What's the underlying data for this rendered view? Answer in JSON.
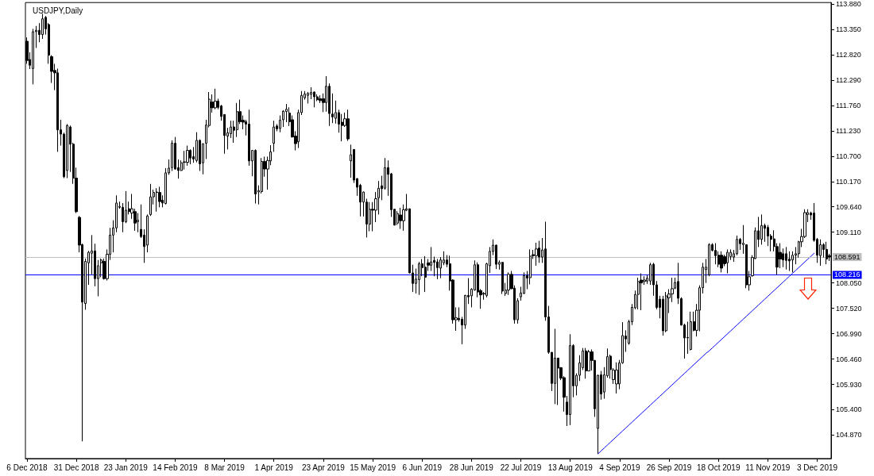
{
  "chart_data": {
    "type": "candlestick",
    "title": "USDJPY,Daily",
    "color": "#000000",
    "marker": "none",
    "categories": [
      "6 Dec 2018",
      null,
      null,
      null,
      null,
      null,
      null,
      null,
      null,
      null,
      null,
      null,
      null,
      null,
      null,
      null,
      "31 Dec 2018",
      null,
      null,
      null,
      null,
      null,
      null,
      null,
      null,
      null,
      null,
      null,
      null,
      null,
      null,
      null,
      "23 Jan 2019",
      null,
      null,
      null,
      null,
      null,
      null,
      null,
      null,
      null,
      null,
      null,
      null,
      null,
      null,
      null,
      "14 Feb 2019",
      null,
      null,
      null,
      null,
      null,
      null,
      null,
      null,
      null,
      null,
      null,
      null,
      null,
      null,
      null,
      "8 Mar 2019",
      null,
      null,
      null,
      null,
      null,
      null,
      null,
      null,
      null,
      null,
      null,
      null,
      null,
      null,
      null,
      "1 Apr 2019",
      null,
      null,
      null,
      null,
      null,
      null,
      null,
      null,
      null,
      null,
      null,
      null,
      null,
      null,
      null,
      "23 Apr 2019",
      null,
      null,
      null,
      null,
      null,
      null,
      null,
      null,
      null,
      null,
      null,
      null,
      null,
      null,
      null,
      "15 May 2019",
      null,
      null,
      null,
      null,
      null,
      null,
      null,
      null,
      null,
      null,
      null,
      null,
      null,
      null,
      null,
      "6 Jun 2019",
      null,
      null,
      null,
      null,
      null,
      null,
      null,
      null,
      null,
      null,
      null,
      null,
      null,
      null,
      null,
      "28 Jun 2019",
      null,
      null,
      null,
      null,
      null,
      null,
      null,
      null,
      null,
      null,
      null,
      null,
      null,
      null,
      null,
      "22 Jul 2019",
      null,
      null,
      null,
      null,
      null,
      null,
      null,
      null,
      null,
      null,
      null,
      null,
      null,
      null,
      null,
      "13 Aug 2019",
      null,
      null,
      null,
      null,
      null,
      null,
      null,
      null,
      null,
      null,
      null,
      null,
      null,
      null,
      null,
      "4 Sep 2019",
      null,
      null,
      null,
      null,
      null,
      null,
      null,
      null,
      null,
      null,
      null,
      null,
      null,
      null,
      null,
      "26 Sep 2019",
      null,
      null,
      null,
      null,
      null,
      null,
      null,
      null,
      null,
      null,
      null,
      null,
      null,
      null,
      null,
      "18 Oct 2019",
      null,
      null,
      null,
      null,
      null,
      null,
      null,
      null,
      null,
      null,
      null,
      null,
      null,
      null,
      null,
      "11 Nov 2019",
      null,
      null,
      null,
      null,
      null,
      null,
      null,
      null,
      null,
      null,
      null,
      null,
      null,
      null,
      null,
      "3 Dec 2019",
      null,
      null,
      null,
      null
    ],
    "ohlc": [
      [
        113.1,
        113.18,
        112.63,
        112.7
      ],
      [
        112.72,
        112.87,
        112.52,
        112.6
      ],
      [
        112.53,
        113.36,
        112.2,
        113.3
      ],
      [
        113.3,
        113.42,
        112.96,
        113.33
      ],
      [
        113.33,
        113.48,
        113.08,
        113.24
      ],
      [
        113.24,
        113.67,
        113.15,
        113.57
      ],
      [
        113.6,
        113.63,
        113.24,
        113.36
      ],
      [
        113.45,
        113.48,
        112.63,
        112.81
      ],
      [
        112.78,
        112.81,
        112.23,
        112.47
      ],
      [
        112.49,
        112.63,
        112.08,
        112.44
      ],
      [
        112.44,
        112.53,
        110.79,
        111.25
      ],
      [
        111.25,
        111.46,
        110.92,
        111.16
      ],
      [
        111.16,
        111.19,
        110.24,
        110.27
      ],
      [
        110.4,
        111.37,
        110.24,
        111.34
      ],
      [
        111.31,
        111.34,
        110.37,
        110.95
      ],
      [
        110.95,
        110.98,
        110.12,
        110.24
      ],
      [
        110.24,
        110.46,
        109.51,
        109.54
      ],
      [
        109.42,
        109.45,
        108.69,
        108.84
      ],
      [
        108.85,
        108.87,
        104.74,
        107.65
      ],
      [
        107.62,
        108.56,
        107.49,
        108.5
      ],
      [
        108.47,
        108.72,
        108.01,
        108.69
      ],
      [
        108.67,
        109.05,
        108.23,
        108.72
      ],
      [
        108.72,
        108.87,
        107.98,
        108.14
      ],
      [
        108.14,
        108.53,
        107.77,
        108.41
      ],
      [
        108.47,
        108.56,
        108.17,
        108.53
      ],
      [
        108.5,
        108.56,
        108.12,
        108.14
      ],
      [
        108.14,
        108.75,
        108.1,
        108.65
      ],
      [
        108.65,
        109.2,
        108.53,
        109.05
      ],
      [
        109.05,
        109.36,
        108.69,
        109.2
      ],
      [
        109.2,
        109.88,
        109.11,
        109.72
      ],
      [
        109.63,
        109.75,
        109.6,
        109.65
      ],
      [
        109.63,
        109.72,
        109.11,
        109.33
      ],
      [
        109.33,
        109.97,
        109.3,
        109.57
      ],
      [
        109.6,
        109.75,
        109.48,
        109.54
      ],
      [
        109.51,
        109.91,
        109.39,
        109.6
      ],
      [
        109.54,
        109.6,
        109.14,
        109.3
      ],
      [
        109.33,
        109.51,
        109.11,
        109.36
      ],
      [
        109.17,
        109.69,
        108.99,
        109.02
      ],
      [
        109.05,
        109.17,
        108.47,
        108.81
      ],
      [
        108.84,
        109.48,
        108.69,
        109.45
      ],
      [
        109.48,
        110.12,
        109.45,
        109.85
      ],
      [
        109.85,
        110.0,
        109.69,
        109.94
      ],
      [
        109.94,
        110.03,
        109.54,
        109.95
      ],
      [
        109.94,
        110.06,
        109.63,
        109.75
      ],
      [
        109.78,
        109.88,
        109.63,
        109.72
      ],
      [
        109.71,
        110.45,
        109.69,
        110.35
      ],
      [
        110.35,
        110.63,
        110.31,
        110.45
      ],
      [
        110.46,
        111.03,
        110.39,
        110.97
      ],
      [
        110.97,
        111.1,
        110.42,
        110.43
      ],
      [
        110.46,
        110.63,
        110.23,
        110.4
      ],
      [
        110.4,
        110.61,
        110.39,
        110.56
      ],
      [
        110.57,
        110.81,
        110.42,
        110.58
      ],
      [
        110.57,
        110.92,
        110.5,
        110.82
      ],
      [
        110.82,
        110.84,
        110.53,
        110.66
      ],
      [
        110.69,
        110.89,
        110.56,
        110.64
      ],
      [
        110.61,
        111.2,
        110.57,
        111.03
      ],
      [
        111.03,
        111.05,
        110.39,
        110.54
      ],
      [
        110.56,
        110.96,
        110.32,
        110.96
      ],
      [
        110.97,
        111.46,
        110.64,
        111.35
      ],
      [
        111.34,
        112.04,
        111.3,
        111.89
      ],
      [
        111.83,
        111.99,
        111.61,
        111.71
      ],
      [
        111.71,
        112.11,
        111.68,
        111.85
      ],
      [
        111.85,
        111.9,
        111.68,
        111.72
      ],
      [
        111.75,
        111.77,
        111.44,
        111.53
      ],
      [
        111.57,
        111.57,
        110.75,
        111.13
      ],
      [
        111.12,
        111.29,
        110.84,
        111.19
      ],
      [
        111.17,
        111.44,
        111.08,
        111.31
      ],
      [
        111.31,
        111.44,
        110.98,
        111.24
      ],
      [
        111.25,
        111.81,
        111.1,
        111.63
      ],
      [
        111.63,
        111.88,
        111.37,
        111.42
      ],
      [
        111.45,
        111.55,
        111.26,
        111.41
      ],
      [
        111.42,
        111.46,
        111.13,
        111.37
      ],
      [
        111.37,
        111.67,
        110.5,
        110.6
      ],
      [
        110.6,
        110.82,
        110.28,
        110.82
      ],
      [
        110.82,
        110.84,
        109.71,
        109.91
      ],
      [
        109.95,
        110.09,
        109.69,
        109.98
      ],
      [
        109.96,
        110.66,
        109.92,
        110.59
      ],
      [
        110.59,
        110.69,
        110.27,
        110.43
      ],
      [
        110.43,
        110.69,
        110.0,
        110.61
      ],
      [
        110.6,
        110.93,
        110.51,
        110.79
      ],
      [
        110.97,
        111.44,
        110.79,
        111.31
      ],
      [
        111.33,
        111.37,
        111.22,
        111.27
      ],
      [
        111.28,
        111.55,
        111.2,
        111.45
      ],
      [
        111.46,
        111.66,
        111.31,
        111.64
      ],
      [
        111.63,
        111.79,
        111.41,
        111.68
      ],
      [
        111.6,
        111.72,
        111.33,
        111.42
      ],
      [
        111.46,
        111.55,
        111.09,
        111.1
      ],
      [
        111.12,
        111.22,
        110.82,
        110.96
      ],
      [
        111.0,
        111.67,
        110.87,
        111.61
      ],
      [
        111.61,
        112.06,
        111.56,
        111.97
      ],
      [
        111.92,
        112.06,
        111.88,
        112.0
      ],
      [
        111.97,
        112.04,
        111.8,
        112.01
      ],
      [
        111.99,
        112.14,
        111.89,
        112.03
      ],
      [
        112.04,
        112.05,
        111.72,
        111.94
      ],
      [
        111.94,
        111.99,
        111.85,
        111.88
      ],
      [
        111.9,
        111.97,
        111.81,
        111.86
      ],
      [
        111.9,
        112.01,
        111.62,
        111.82
      ],
      [
        111.82,
        112.37,
        111.63,
        112.16
      ],
      [
        112.16,
        112.22,
        111.33,
        111.59
      ],
      [
        111.58,
        112.01,
        111.39,
        111.52
      ],
      [
        111.49,
        111.86,
        111.38,
        111.61
      ],
      [
        111.61,
        111.67,
        111.19,
        111.37
      ],
      [
        111.41,
        111.58,
        111.01,
        111.34
      ],
      [
        111.34,
        111.61,
        111.31,
        111.48
      ],
      [
        111.48,
        111.67,
        111.02,
        111.06
      ],
      [
        110.6,
        110.94,
        110.25,
        110.73
      ],
      [
        110.84,
        110.84,
        110.14,
        110.2
      ],
      [
        110.23,
        110.24,
        109.87,
        110.05
      ],
      [
        110.09,
        110.12,
        109.44,
        109.74
      ],
      [
        109.74,
        109.96,
        109.44,
        109.95
      ],
      [
        109.74,
        109.81,
        109.0,
        109.28
      ],
      [
        109.28,
        109.74,
        109.13,
        109.59
      ],
      [
        109.59,
        109.74,
        109.13,
        109.57
      ],
      [
        109.57,
        109.95,
        109.32,
        109.81
      ],
      [
        109.83,
        110.18,
        109.48,
        110.03
      ],
      [
        110.08,
        110.29,
        109.78,
        110.02
      ],
      [
        110.03,
        110.66,
        110.0,
        110.46
      ],
      [
        110.46,
        110.61,
        109.87,
        110.32
      ],
      [
        110.33,
        110.35,
        109.43,
        109.58
      ],
      [
        109.59,
        109.59,
        109.25,
        109.26
      ],
      [
        109.3,
        109.55,
        109.26,
        109.5
      ],
      [
        109.47,
        109.62,
        109.18,
        109.35
      ],
      [
        109.35,
        109.69,
        109.14,
        109.58
      ],
      [
        109.57,
        109.91,
        109.55,
        109.6
      ],
      [
        109.6,
        109.6,
        108.25,
        108.26
      ],
      [
        108.26,
        108.43,
        107.86,
        108.04
      ],
      [
        108.04,
        108.35,
        107.83,
        108.13
      ],
      [
        108.12,
        108.49,
        107.8,
        108.45
      ],
      [
        108.45,
        108.55,
        108.19,
        108.37
      ],
      [
        108.38,
        108.61,
        107.86,
        108.17
      ],
      [
        108.47,
        108.55,
        108.3,
        108.42
      ],
      [
        108.42,
        108.8,
        108.3,
        108.49
      ],
      [
        108.52,
        108.6,
        108.19,
        108.48
      ],
      [
        108.49,
        108.55,
        108.13,
        108.37
      ],
      [
        108.36,
        108.59,
        108.15,
        108.53
      ],
      [
        108.47,
        108.71,
        108.42,
        108.53
      ],
      [
        108.53,
        108.63,
        108.38,
        108.44
      ],
      [
        108.45,
        108.62,
        107.89,
        108.09
      ],
      [
        108.11,
        108.13,
        107.2,
        107.28
      ],
      [
        107.28,
        107.54,
        107.05,
        107.32
      ],
      [
        107.31,
        107.54,
        107.24,
        107.28
      ],
      [
        107.29,
        107.34,
        106.77,
        107.17
      ],
      [
        107.17,
        107.8,
        107.09,
        107.79
      ],
      [
        107.79,
        108.15,
        107.61,
        107.76
      ],
      [
        107.78,
        107.94,
        107.54,
        107.92
      ],
      [
        107.9,
        108.52,
        107.89,
        108.43
      ],
      [
        108.43,
        108.48,
        107.75,
        107.86
      ],
      [
        107.89,
        107.92,
        107.51,
        107.8
      ],
      [
        107.82,
        107.86,
        107.7,
        107.83
      ],
      [
        107.79,
        108.47,
        107.75,
        108.45
      ],
      [
        108.41,
        108.8,
        108.26,
        108.71
      ],
      [
        108.71,
        108.96,
        108.63,
        108.84
      ],
      [
        108.84,
        108.85,
        108.34,
        108.44
      ],
      [
        108.44,
        108.52,
        108.33,
        108.48
      ],
      [
        108.48,
        108.49,
        107.82,
        107.88
      ],
      [
        107.83,
        108.05,
        107.78,
        107.9
      ],
      [
        107.9,
        108.27,
        107.8,
        108.23
      ],
      [
        108.23,
        108.3,
        107.92,
        107.93
      ],
      [
        107.94,
        108.0,
        107.2,
        107.28
      ],
      [
        107.28,
        107.73,
        107.2,
        107.68
      ],
      [
        107.76,
        107.97,
        107.68,
        107.84
      ],
      [
        107.83,
        108.27,
        107.82,
        108.2
      ],
      [
        108.2,
        108.3,
        107.92,
        108.15
      ],
      [
        108.16,
        108.75,
        108.02,
        108.61
      ],
      [
        108.64,
        108.74,
        108.55,
        108.62
      ],
      [
        108.62,
        108.89,
        108.41,
        108.76
      ],
      [
        108.78,
        108.93,
        108.47,
        108.59
      ],
      [
        108.59,
        108.99,
        108.47,
        108.74
      ],
      [
        108.76,
        109.33,
        107.26,
        107.34
      ],
      [
        107.34,
        107.57,
        106.57,
        106.6
      ],
      [
        106.6,
        106.6,
        105.79,
        105.95
      ],
      [
        105.95,
        107.09,
        105.52,
        106.48
      ],
      [
        106.48,
        106.48,
        105.5,
        106.27
      ],
      [
        106.28,
        106.29,
        106.02,
        106.06
      ],
      [
        106.07,
        106.1,
        105.36,
        105.66
      ],
      [
        105.56,
        105.69,
        105.06,
        105.3
      ],
      [
        105.3,
        106.98,
        105.08,
        106.74
      ],
      [
        106.74,
        106.77,
        105.66,
        105.9
      ],
      [
        105.9,
        106.16,
        105.7,
        106.12
      ],
      [
        106.12,
        106.54,
        106.0,
        106.38
      ],
      [
        106.28,
        106.69,
        106.23,
        106.63
      ],
      [
        106.63,
        106.69,
        106.05,
        106.21
      ],
      [
        106.21,
        106.65,
        106.21,
        106.61
      ],
      [
        106.61,
        106.66,
        106.22,
        106.43
      ],
      [
        106.43,
        106.44,
        105.25,
        105.42
      ],
      [
        105.01,
        106.13,
        104.48,
        106.12
      ],
      [
        106.13,
        106.21,
        105.61,
        105.73
      ],
      [
        105.77,
        106.29,
        105.63,
        106.13
      ],
      [
        106.11,
        106.68,
        106.07,
        106.51
      ],
      [
        106.52,
        106.55,
        106.05,
        106.24
      ],
      [
        106.03,
        106.27,
        105.94,
        106.23
      ],
      [
        105.94,
        106.39,
        105.74,
        106.23
      ],
      [
        105.94,
        106.44,
        105.83,
        106.38
      ],
      [
        106.38,
        107.23,
        106.36,
        106.95
      ],
      [
        106.94,
        107.06,
        106.61,
        106.88
      ],
      [
        106.79,
        107.28,
        106.76,
        107.24
      ],
      [
        107.24,
        107.61,
        107.17,
        107.54
      ],
      [
        107.53,
        107.89,
        107.5,
        107.81
      ],
      [
        107.81,
        108.16,
        107.5,
        108.08
      ],
      [
        108.11,
        108.25,
        107.48,
        108.05
      ],
      [
        108.08,
        108.19,
        108.01,
        108.11
      ],
      [
        108.09,
        108.22,
        108.03,
        108.15
      ],
      [
        108.09,
        108.47,
        108.01,
        108.43
      ],
      [
        108.44,
        108.47,
        107.78,
        108.01
      ],
      [
        108.01,
        108.09,
        107.5,
        107.54
      ],
      [
        107.71,
        107.78,
        107.31,
        107.54
      ],
      [
        107.71,
        107.78,
        106.95,
        107.05
      ],
      [
        107.05,
        107.86,
        107.02,
        107.78
      ],
      [
        107.74,
        107.92,
        107.42,
        107.82
      ],
      [
        107.82,
        108.16,
        107.65,
        107.93
      ],
      [
        107.94,
        108.16,
        107.92,
        108.06
      ],
      [
        108.08,
        108.47,
        107.61,
        107.73
      ],
      [
        107.72,
        107.75,
        107.16,
        107.17
      ],
      [
        107.17,
        107.2,
        106.47,
        106.9
      ],
      [
        106.9,
        107.24,
        106.57,
        106.91
      ],
      [
        106.66,
        107.45,
        106.64,
        107.24
      ],
      [
        107.24,
        107.45,
        107.04,
        107.06
      ],
      [
        107.06,
        107.61,
        106.93,
        107.48
      ],
      [
        107.48,
        108.0,
        107.04,
        107.95
      ],
      [
        107.95,
        108.47,
        107.83,
        108.38
      ],
      [
        108.33,
        108.55,
        108.05,
        108.38
      ],
      [
        108.22,
        108.88,
        108.19,
        108.85
      ],
      [
        108.85,
        108.88,
        108.71,
        108.73
      ],
      [
        108.73,
        108.88,
        108.44,
        108.62
      ],
      [
        108.63,
        108.71,
        108.38,
        108.44
      ],
      [
        108.63,
        108.71,
        108.27,
        108.36
      ],
      [
        108.6,
        108.64,
        108.4,
        108.45
      ],
      [
        108.47,
        108.75,
        108.25,
        108.69
      ],
      [
        108.6,
        108.75,
        108.53,
        108.69
      ],
      [
        108.59,
        108.74,
        108.49,
        108.66
      ],
      [
        108.66,
        109.04,
        108.63,
        108.96
      ],
      [
        108.96,
        108.99,
        108.74,
        108.87
      ],
      [
        108.85,
        109.26,
        108.66,
        108.88
      ],
      [
        108.85,
        108.85,
        107.94,
        108.01
      ],
      [
        108.01,
        108.3,
        107.89,
        108.18
      ],
      [
        108.2,
        108.63,
        108.18,
        108.58
      ],
      [
        108.56,
        109.21,
        108.55,
        109.14
      ],
      [
        109.14,
        109.43,
        108.8,
        108.96
      ],
      [
        108.96,
        109.48,
        108.85,
        109.25
      ],
      [
        109.25,
        109.29,
        108.91,
        109.19
      ],
      [
        109.21,
        109.26,
        108.82,
        109.03
      ],
      [
        109.03,
        109.07,
        108.71,
        108.96
      ],
      [
        108.97,
        109.15,
        108.71,
        108.81
      ],
      [
        108.81,
        108.88,
        108.22,
        108.38
      ],
      [
        108.69,
        108.88,
        108.36,
        108.55
      ],
      [
        108.66,
        108.77,
        108.38,
        108.53
      ],
      [
        108.66,
        108.8,
        108.33,
        108.52
      ],
      [
        108.55,
        108.71,
        108.3,
        108.51
      ],
      [
        108.53,
        108.71,
        108.27,
        108.63
      ],
      [
        108.63,
        108.8,
        108.44,
        108.66
      ],
      [
        108.66,
        108.93,
        108.58,
        108.91
      ],
      [
        108.91,
        109.18,
        108.8,
        109.02
      ],
      [
        109.02,
        109.59,
        108.99,
        109.52
      ],
      [
        109.48,
        109.59,
        109.32,
        109.52
      ],
      [
        109.51,
        109.54,
        109.37,
        109.47
      ],
      [
        109.51,
        109.72,
        108.91,
        108.94
      ],
      [
        108.96,
        108.99,
        108.47,
        108.63
      ],
      [
        108.62,
        108.96,
        108.41,
        108.85
      ],
      [
        108.85,
        108.88,
        108.58,
        108.75
      ],
      [
        108.75,
        108.91,
        108.44,
        108.55
      ],
      [
        108.62,
        108.66,
        108.51,
        108.59
      ]
    ],
    "series": [
      {
        "type": "line",
        "color": "#0000ff",
        "values": [
          null,
          null,
          null,
          null,
          null,
          null,
          null,
          null,
          null,
          null,
          null,
          null,
          null,
          null,
          null,
          null,
          null,
          null,
          null,
          null,
          null,
          null,
          null,
          null,
          null,
          null,
          null,
          null,
          null,
          null,
          null,
          null,
          null,
          null,
          null,
          null,
          null,
          null,
          null,
          null,
          null,
          null,
          null,
          null,
          null,
          null,
          null,
          null,
          null,
          null,
          null,
          null,
          null,
          null,
          null,
          null,
          null,
          null,
          null,
          null,
          null,
          null,
          null,
          null,
          null,
          null,
          null,
          null,
          null,
          null,
          null,
          null,
          null,
          null,
          null,
          null,
          null,
          null,
          null,
          null,
          null,
          null,
          null,
          null,
          null,
          null,
          null,
          null,
          null,
          null,
          null,
          null,
          null,
          null,
          null,
          null,
          null,
          null,
          null,
          null,
          null,
          null,
          null,
          null,
          null,
          null,
          null,
          null,
          null,
          null,
          null,
          null,
          null,
          null,
          null,
          null,
          null,
          null,
          null,
          null,
          null,
          null,
          null,
          null,
          null,
          null,
          null,
          null,
          null,
          null,
          null,
          null,
          null,
          null,
          null,
          null,
          null,
          null,
          null,
          null,
          null,
          null,
          null,
          null,
          null,
          null,
          null,
          null,
          null,
          null,
          null,
          null,
          null,
          null,
          null,
          null,
          null,
          null,
          null,
          null,
          null,
          null,
          null,
          null,
          null,
          null,
          null,
          null,
          null,
          null,
          null,
          null,
          null,
          null,
          null,
          null,
          null,
          null,
          null,
          null,
          null,
          null,
          null,
          null,
          null,
          104.48,
          104.54,
          104.6,
          104.66,
          104.72,
          104.78,
          104.84,
          104.9,
          104.96,
          105.02,
          105.08,
          105.14,
          105.2,
          105.26,
          105.32,
          105.38,
          105.44,
          105.5,
          105.56,
          105.62,
          105.68,
          105.74,
          105.8,
          105.86,
          105.92,
          105.98,
          106.04,
          106.1,
          106.16,
          106.22,
          106.28,
          106.34,
          106.4,
          106.46,
          106.52,
          106.58,
          106.63,
          106.69,
          106.75,
          106.81,
          106.87,
          106.93,
          106.99,
          107.05,
          107.11,
          107.17,
          107.23,
          107.29,
          107.35,
          107.41,
          107.47,
          107.53,
          107.59,
          107.65,
          107.71,
          107.77,
          107.83,
          107.89,
          107.95,
          108.01,
          108.07,
          108.13,
          108.19,
          108.25,
          108.31,
          108.37,
          108.43,
          108.49,
          108.55,
          108.61,
          108.67,
          null,
          null,
          null,
          null,
          null
        ]
      }
    ],
    "ylim": [
      104.38,
      113.91
    ],
    "yticks": [
      {
        "value": 104.87,
        "label": "104.870"
      },
      {
        "value": 105.4,
        "label": "105.400"
      },
      {
        "value": 105.93,
        "label": "105.930"
      },
      {
        "value": 106.46,
        "label": "106.460"
      },
      {
        "value": 106.99,
        "label": "106.990"
      },
      {
        "value": 107.52,
        "label": "107.520"
      },
      {
        "value": 108.05,
        "label": "108.050"
      },
      {
        "value": 109.11,
        "label": "109.110"
      },
      {
        "value": 109.64,
        "label": "109.640"
      },
      {
        "value": 110.17,
        "label": "110.170"
      },
      {
        "value": 110.7,
        "label": "110.700"
      },
      {
        "value": 111.23,
        "label": "111.230"
      },
      {
        "value": 111.76,
        "label": "111.760"
      },
      {
        "value": 112.29,
        "label": "112.290"
      },
      {
        "value": 112.82,
        "label": "112.820"
      },
      {
        "value": 113.35,
        "label": "113.350"
      },
      {
        "value": 113.88,
        "label": "113.880"
      }
    ],
    "ref_lines": [
      {
        "axis": "y",
        "value": 108.591,
        "label": "108.591",
        "color": "#c0c0c0"
      },
      {
        "axis": "y",
        "value": 108.216,
        "label": "108.216",
        "color": "#0000ff"
      }
    ]
  }
}
